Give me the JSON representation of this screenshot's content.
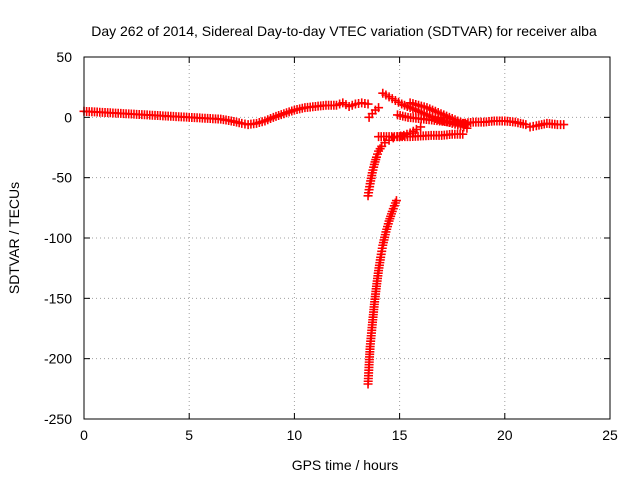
{
  "chart_data": {
    "type": "scatter",
    "title": "Day 262 of 2014, Sidereal Day-to-day VTEC variation (SDTVAR) for receiver alba",
    "xlabel": "GPS time / hours",
    "ylabel": "SDTVAR / TECUs",
    "xlim": [
      0,
      25
    ],
    "ylim": [
      -250,
      50
    ],
    "xticks": [
      "0",
      "5",
      "10",
      "15",
      "20",
      "25"
    ],
    "yticks": [
      "50",
      "0",
      "-50",
      "-100",
      "-150",
      "-200",
      "-250"
    ],
    "grid": true,
    "marker": "+",
    "color": "#ff0000",
    "series": [
      {
        "points": [
          [
            0.0,
            5
          ],
          [
            0.5,
            4.5
          ],
          [
            1.0,
            4
          ],
          [
            1.5,
            3.5
          ],
          [
            2.0,
            3
          ],
          [
            2.5,
            2.5
          ],
          [
            3.0,
            2
          ],
          [
            3.5,
            1.5
          ],
          [
            4.0,
            1
          ],
          [
            4.5,
            0.5
          ],
          [
            5.0,
            0
          ],
          [
            5.5,
            -0.5
          ],
          [
            6.0,
            -1
          ],
          [
            6.5,
            -1.5
          ],
          [
            7.0,
            -3
          ],
          [
            7.5,
            -5
          ],
          [
            7.8,
            -6
          ],
          [
            8.2,
            -5
          ],
          [
            8.6,
            -3
          ],
          [
            9.0,
            0
          ],
          [
            9.5,
            3
          ],
          [
            10.0,
            6
          ],
          [
            10.5,
            8
          ],
          [
            11.0,
            9
          ],
          [
            11.5,
            10
          ],
          [
            12.0,
            10
          ],
          [
            12.3,
            12
          ],
          [
            12.6,
            9
          ],
          [
            12.9,
            11
          ],
          [
            13.2,
            12
          ],
          [
            13.5,
            11
          ]
        ]
      },
      {
        "points": [
          [
            13.55,
            0
          ],
          [
            13.7,
            3
          ],
          [
            13.85,
            6
          ],
          [
            14.0,
            8
          ]
        ]
      },
      {
        "points": [
          [
            13.5,
            -65
          ],
          [
            13.6,
            -55
          ],
          [
            13.7,
            -46
          ],
          [
            13.8,
            -39
          ],
          [
            13.9,
            -33
          ],
          [
            14.0,
            -28
          ],
          [
            14.15,
            -24
          ],
          [
            14.3,
            -21
          ],
          [
            14.5,
            -19
          ],
          [
            14.7,
            -17
          ],
          [
            14.9,
            -16
          ],
          [
            15.2,
            -15
          ],
          [
            15.5,
            -13
          ],
          [
            15.8,
            -10
          ],
          [
            16.0,
            -8
          ]
        ]
      },
      {
        "points": [
          [
            13.5,
            -221
          ],
          [
            13.55,
            -205
          ],
          [
            13.6,
            -190
          ],
          [
            13.7,
            -172
          ],
          [
            13.8,
            -155
          ],
          [
            13.9,
            -140
          ],
          [
            14.0,
            -127
          ],
          [
            14.1,
            -116
          ],
          [
            14.2,
            -106
          ],
          [
            14.35,
            -95
          ],
          [
            14.5,
            -86
          ],
          [
            14.65,
            -78
          ],
          [
            14.8,
            -71
          ],
          [
            14.85,
            -69
          ]
        ]
      },
      {
        "points": [
          [
            14.0,
            -16
          ],
          [
            14.5,
            -16
          ],
          [
            15.0,
            -16
          ],
          [
            15.5,
            -16
          ],
          [
            16.0,
            -15.5
          ],
          [
            16.5,
            -15
          ],
          [
            17.0,
            -15
          ],
          [
            17.5,
            -14
          ],
          [
            18.0,
            -14
          ]
        ]
      },
      {
        "points": [
          [
            14.2,
            20
          ],
          [
            14.5,
            17
          ],
          [
            14.8,
            14
          ],
          [
            15.1,
            11
          ],
          [
            15.5,
            8
          ],
          [
            15.9,
            5
          ],
          [
            16.3,
            2
          ],
          [
            16.7,
            -1
          ],
          [
            17.1,
            -3
          ],
          [
            17.5,
            -5
          ],
          [
            17.9,
            -7
          ],
          [
            18.2,
            -9
          ]
        ]
      },
      {
        "points": [
          [
            15.5,
            12
          ],
          [
            15.9,
            10
          ],
          [
            16.3,
            8
          ],
          [
            16.7,
            5
          ],
          [
            17.1,
            2
          ],
          [
            17.5,
            -1
          ],
          [
            17.9,
            -4
          ],
          [
            18.2,
            -6
          ]
        ]
      },
      {
        "points": [
          [
            14.9,
            2
          ],
          [
            15.4,
            0
          ],
          [
            15.9,
            -1
          ],
          [
            16.4,
            -2
          ],
          [
            16.9,
            -3
          ],
          [
            17.4,
            -4
          ],
          [
            17.9,
            -5
          ],
          [
            18.2,
            -6
          ]
        ]
      },
      {
        "points": [
          [
            18.0,
            -5
          ],
          [
            18.5,
            -4
          ],
          [
            19.0,
            -4
          ],
          [
            19.5,
            -3
          ],
          [
            20.0,
            -3
          ],
          [
            20.5,
            -4
          ],
          [
            21.0,
            -6
          ],
          [
            21.2,
            -8
          ],
          [
            21.5,
            -7
          ],
          [
            22.0,
            -5
          ],
          [
            22.5,
            -6
          ],
          [
            22.8,
            -6
          ]
        ]
      }
    ]
  }
}
